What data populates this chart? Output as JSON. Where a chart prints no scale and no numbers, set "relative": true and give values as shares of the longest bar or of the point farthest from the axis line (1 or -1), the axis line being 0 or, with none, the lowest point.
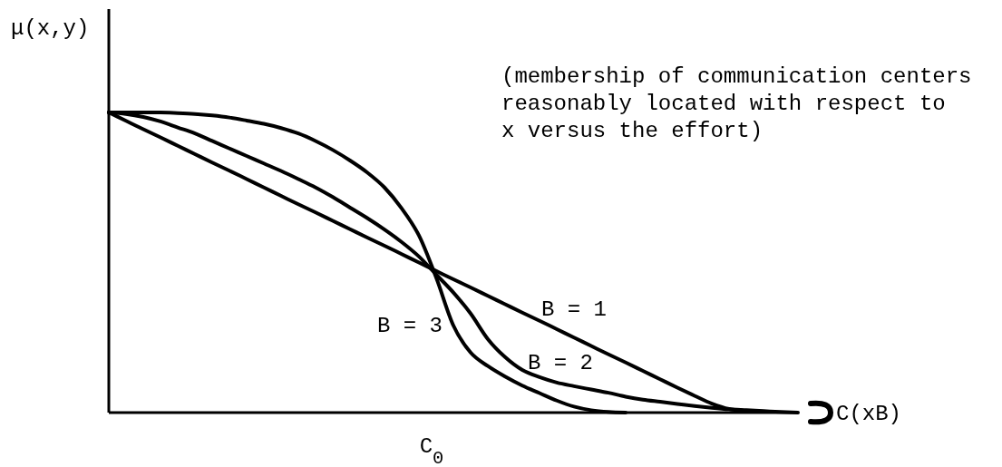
{
  "chart_data": {
    "type": "line",
    "relative": true,
    "ylabel": "μ(x,y)",
    "xlabel": "C(xB)",
    "annotations": [
      "(membership of communication centers\nreasonably located with respect to\nx versus the effort)",
      "C$_{0}$"
    ],
    "categories": [
      null,
      null,
      null,
      null,
      null,
      null,
      null,
      null,
      null,
      null,
      null,
      null,
      null,
      null,
      null,
      null,
      null,
      null,
      null,
      null,
      null,
      null,
      null,
      null,
      null,
      null,
      null,
      null,
      null,
      null,
      null,
      null,
      null,
      null,
      null,
      null,
      null,
      null,
      null,
      null,
      null
    ],
    "series": [
      {
        "name": "B = 1",
        "color": "#000000",
        "values": [
          1.0,
          0.972,
          0.944,
          0.917,
          0.889,
          0.861,
          0.833,
          0.806,
          0.778,
          0.75,
          0.722,
          0.694,
          0.667,
          0.639,
          0.611,
          0.583,
          0.556,
          0.528,
          0.5,
          0.472,
          0.444,
          0.417,
          0.389,
          0.361,
          0.333,
          0.306,
          0.278,
          0.25,
          0.222,
          0.194,
          0.167,
          0.139,
          0.111,
          0.083,
          0.056,
          0.03,
          0.012,
          0.006,
          0.003,
          null,
          null
        ]
      },
      {
        "name": "B = 2",
        "color": "#000000",
        "values": [
          1.0,
          0.995,
          0.985,
          0.97,
          0.95,
          0.93,
          0.905,
          0.88,
          0.855,
          0.83,
          0.805,
          0.778,
          0.75,
          0.718,
          0.683,
          0.648,
          0.61,
          0.568,
          0.52,
          0.46,
          0.4,
          0.33,
          0.245,
          0.185,
          0.142,
          0.118,
          0.1,
          0.088,
          0.077,
          0.066,
          0.053,
          0.043,
          0.036,
          0.029,
          0.022,
          0.016,
          0.011,
          0.008,
          0.005,
          0.002,
          0.0
        ]
      },
      {
        "name": "B = 3",
        "color": "#000000",
        "values": [
          1.0,
          1.0,
          1.0,
          1.0,
          0.998,
          0.995,
          0.99,
          0.983,
          0.973,
          0.962,
          0.948,
          0.93,
          0.905,
          0.875,
          0.84,
          0.8,
          0.75,
          0.68,
          0.59,
          0.45,
          0.29,
          0.2,
          0.155,
          0.12,
          0.09,
          0.065,
          0.04,
          0.02,
          0.008,
          0.002,
          0.0,
          null,
          null,
          null,
          null,
          null,
          null,
          null,
          null,
          null,
          null
        ]
      }
    ]
  }
}
